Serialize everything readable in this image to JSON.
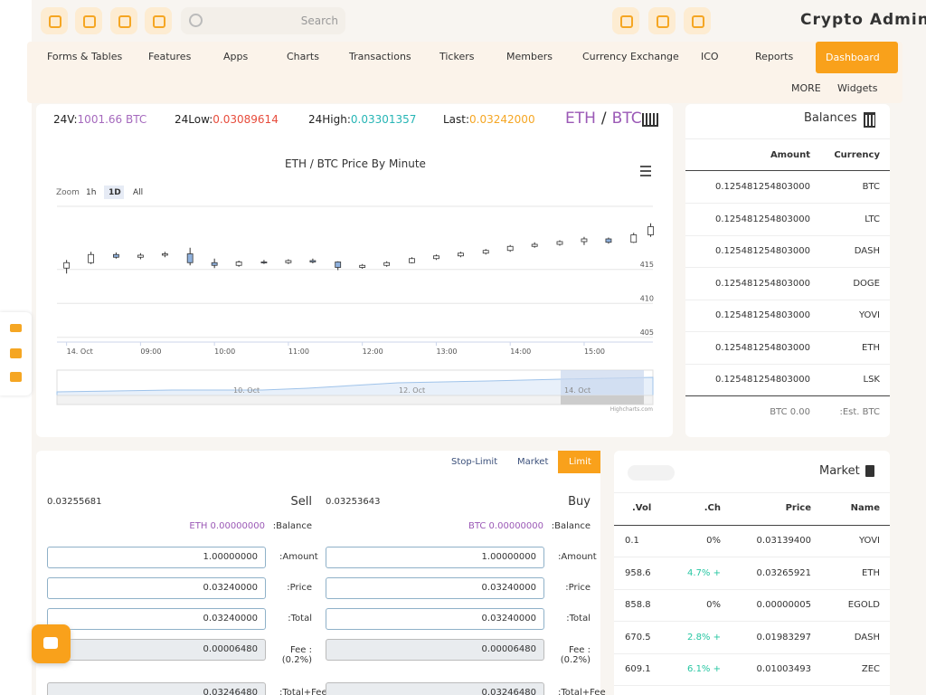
{
  "header": {
    "search": "Search",
    "brand": "Crypto Admin"
  },
  "nav": [
    "Forms & Tables",
    "Features",
    "Apps",
    "Charts",
    "Transactions",
    "Tickers",
    "Members",
    "Currency Exchange",
    "ICO",
    "Reports",
    "Dashboard",
    "MORE",
    "Widgets"
  ],
  "stats": {
    "vol_label": "24V:",
    "vol": "1001.66 BTC",
    "low_label": "24Low:",
    "low": "0.03089614",
    "high_label": "24High:",
    "high": "0.03301357",
    "last_label": "Last:",
    "last": "0.03242000",
    "pair_base": "ETH",
    "pair_sep": "/",
    "pair_quote": "BTC"
  },
  "chart_data": {
    "type": "candlestick",
    "title": "ETH / BTC Price By Minute",
    "zoom_label": "Zoom",
    "zoom_buttons": [
      "1h",
      "1D",
      "All"
    ],
    "x": [
      8.0,
      8.33,
      8.67,
      9.0,
      9.33,
      9.67,
      10.0,
      10.33,
      10.67,
      11.0,
      11.33,
      11.67,
      12.0,
      12.33,
      12.67,
      13.0,
      13.33,
      13.67,
      14.0,
      14.33,
      14.67,
      15.0,
      15.33,
      15.67,
      15.9
    ],
    "open": [
      415.2,
      416.0,
      417.2,
      416.8,
      417.1,
      417.3,
      416.0,
      415.6,
      416.1,
      416.0,
      416.3,
      416.1,
      415.3,
      415.6,
      416.0,
      416.6,
      417.0,
      417.4,
      417.8,
      418.4,
      418.7,
      419.1,
      419.5,
      419.0,
      420.1
    ],
    "high": [
      416.4,
      417.6,
      417.5,
      417.4,
      417.6,
      418.2,
      416.6,
      416.3,
      416.4,
      416.5,
      416.6,
      416.2,
      415.8,
      416.2,
      416.8,
      417.2,
      417.6,
      418.0,
      418.6,
      419.0,
      419.3,
      419.8,
      419.7,
      420.4,
      421.8
    ],
    "low": [
      414.4,
      415.8,
      416.6,
      416.5,
      416.8,
      415.6,
      415.2,
      415.4,
      415.8,
      415.8,
      415.9,
      414.9,
      415.1,
      415.4,
      415.9,
      416.4,
      416.8,
      417.2,
      417.6,
      418.2,
      418.5,
      418.6,
      418.8,
      418.9,
      419.8
    ],
    "close": [
      416.0,
      417.2,
      416.8,
      417.1,
      417.3,
      416.0,
      415.6,
      416.1,
      416.0,
      416.3,
      416.1,
      415.3,
      415.6,
      416.0,
      416.6,
      417.0,
      417.4,
      417.8,
      418.4,
      418.7,
      419.1,
      419.5,
      419.0,
      420.1,
      421.3
    ],
    "up_color": "#ffffff",
    "down_color": "#8fb1dd",
    "line_color": "#333333",
    "xlim": [
      7.87,
      15.93
    ],
    "xticks": [
      {
        "value": 8,
        "label": "14. Oct"
      },
      {
        "value": 9,
        "label": "09:00"
      },
      {
        "value": 10,
        "label": "10:00"
      },
      {
        "value": 11,
        "label": "11:00"
      },
      {
        "value": 12,
        "label": "12:00"
      },
      {
        "value": 13,
        "label": "13:00"
      },
      {
        "value": 14,
        "label": "14:00"
      },
      {
        "value": 15,
        "label": "15:00"
      }
    ],
    "ylim": [
      404.3,
      424.3
    ],
    "yticks": [
      405,
      410,
      415
    ],
    "grid": true,
    "navigator_labels": [
      "10. Oct",
      "12. Oct",
      "14. Oct"
    ],
    "credit": "Highcharts.com"
  },
  "balances": {
    "title": "Balances",
    "columns": [
      "Amount",
      "Currency"
    ],
    "rows": [
      [
        "0.125481254803000",
        "BTC"
      ],
      [
        "0.125481254803000",
        "LTC"
      ],
      [
        "0.125481254803000",
        "DASH"
      ],
      [
        "0.125481254803000",
        "DOGE"
      ],
      [
        "0.125481254803000",
        "YOVI"
      ],
      [
        "0.125481254803000",
        "ETH"
      ],
      [
        "0.125481254803000",
        "LSK"
      ]
    ],
    "footer": [
      "BTC 0.00",
      ":Est. BTC"
    ]
  },
  "order": {
    "tabs": [
      "Stop-Limit",
      "Market",
      "Limit"
    ],
    "sell": {
      "price": "0.03255681",
      "title": "Sell",
      "balance": "ETH 0.00000000",
      "balance_label": ":Balance",
      "fields": [
        [
          "1.00000000",
          ":Amount"
        ],
        [
          "0.03240000",
          ":Price"
        ],
        [
          "0.03240000",
          ":Total"
        ],
        [
          "0.00006480",
          "Fee :(0.2%)"
        ],
        [
          "0.03246480",
          ":Total+Fee"
        ]
      ]
    },
    "buy": {
      "price": "0.03253643",
      "title": "Buy",
      "balance": "BTC 0.00000000",
      "balance_label": ":Balance",
      "fields": [
        [
          "1.00000000",
          ":Amount"
        ],
        [
          "0.03240000",
          ":Price"
        ],
        [
          "0.03240000",
          ":Total"
        ],
        [
          "0.00006480",
          "Fee :(0.2%)"
        ],
        [
          "0.03246480",
          ":Total+Fee"
        ]
      ]
    }
  },
  "market": {
    "title": "Market",
    "columns": [
      ".Vol",
      ".Ch",
      "Price",
      "Name"
    ],
    "rows": [
      [
        "0.1",
        "0%",
        "0.03139400",
        "YOVI"
      ],
      [
        "958.6",
        "4.7% +",
        "0.03265921",
        "ETH"
      ],
      [
        "858.8",
        "0%",
        "0.00000005",
        "EGOLD"
      ],
      [
        "670.5",
        "2.8% +",
        "0.01983297",
        "DASH"
      ],
      [
        "609.1",
        "6.1% +",
        "0.01003493",
        "ZEC"
      ]
    ]
  }
}
